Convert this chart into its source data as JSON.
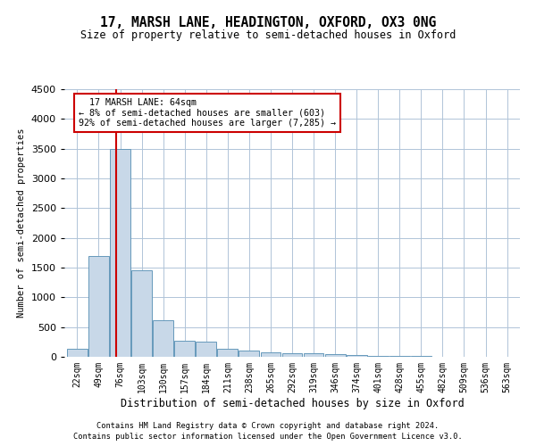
{
  "title": "17, MARSH LANE, HEADINGTON, OXFORD, OX3 0NG",
  "subtitle": "Size of property relative to semi-detached houses in Oxford",
  "xlabel": "Distribution of semi-detached houses by size in Oxford",
  "ylabel": "Number of semi-detached properties",
  "footnote1": "Contains HM Land Registry data © Crown copyright and database right 2024.",
  "footnote2": "Contains public sector information licensed under the Open Government Licence v3.0.",
  "bar_color": "#c8d8e8",
  "bar_edge_color": "#6699bb",
  "grid_color": "#b0c4d8",
  "annotation_box_color": "#ffffff",
  "annotation_box_edge": "#cc0000",
  "red_line_color": "#cc0000",
  "categories": [
    "22sqm",
    "49sqm",
    "76sqm",
    "103sqm",
    "130sqm",
    "157sqm",
    "184sqm",
    "211sqm",
    "238sqm",
    "265sqm",
    "292sqm",
    "319sqm",
    "346sqm",
    "374sqm",
    "401sqm",
    "428sqm",
    "455sqm",
    "482sqm",
    "509sqm",
    "536sqm",
    "563sqm"
  ],
  "values": [
    130,
    1700,
    3500,
    1450,
    620,
    270,
    260,
    140,
    100,
    80,
    60,
    55,
    40,
    25,
    15,
    10,
    8,
    5,
    4,
    3,
    3
  ],
  "ylim": [
    0,
    4500
  ],
  "yticks": [
    0,
    500,
    1000,
    1500,
    2000,
    2500,
    3000,
    3500,
    4000,
    4500
  ],
  "property_label": "17 MARSH LANE: 64sqm",
  "pct_smaller": 8,
  "n_smaller": 603,
  "pct_larger": 92,
  "n_larger": 7285,
  "red_line_x": 1.83
}
